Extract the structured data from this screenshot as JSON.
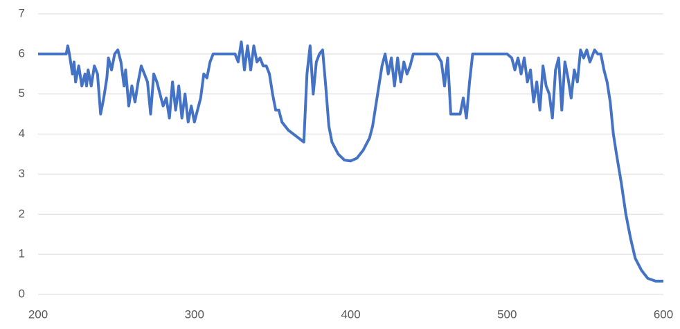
{
  "chart_data": {
    "type": "line",
    "x": [
      200,
      218,
      219,
      220,
      222,
      223,
      224,
      226,
      228,
      230,
      231,
      232,
      234,
      236,
      238,
      240,
      242,
      244,
      245,
      247,
      249,
      251,
      253,
      255,
      256,
      258,
      260,
      262,
      264,
      266,
      268,
      270,
      272,
      274,
      276,
      278,
      280,
      282,
      284,
      286,
      288,
      290,
      292,
      294,
      296,
      298,
      300,
      302,
      304,
      306,
      308,
      310,
      312,
      314,
      320,
      326,
      328,
      330,
      332,
      334,
      336,
      338,
      340,
      342,
      344,
      346,
      348,
      350,
      352,
      354,
      356,
      360,
      365,
      370,
      372,
      374,
      376,
      378,
      380,
      382,
      384,
      386,
      388,
      392,
      396,
      400,
      404,
      408,
      412,
      414,
      416,
      418,
      420,
      422,
      424,
      426,
      428,
      430,
      432,
      434,
      436,
      438,
      440,
      445,
      455,
      458,
      460,
      462,
      464,
      466,
      470,
      472,
      474,
      476,
      478,
      480,
      500,
      503,
      505,
      507,
      509,
      511,
      513,
      515,
      517,
      519,
      521,
      523,
      525,
      527,
      529,
      531,
      533,
      535,
      537,
      539,
      541,
      543,
      545,
      547,
      549,
      551,
      553,
      556,
      558,
      560,
      562,
      564,
      566,
      568,
      570,
      573,
      576,
      579,
      582,
      586,
      590,
      595,
      600
    ],
    "series": [
      {
        "color": "#4472c4",
        "values": [
          6,
          6,
          6.2,
          6,
          5.5,
          5.8,
          5.3,
          5.7,
          5.2,
          5.5,
          5.2,
          5.6,
          5.2,
          5.7,
          5.5,
          4.5,
          4.9,
          5.4,
          5.9,
          5.6,
          6.0,
          6.1,
          5.8,
          5.2,
          5.6,
          4.7,
          5.2,
          4.8,
          5.3,
          5.7,
          5.5,
          5.3,
          4.5,
          5.5,
          5.3,
          5.0,
          4.7,
          4.9,
          4.4,
          5.3,
          4.6,
          5.2,
          4.4,
          5.0,
          4.3,
          4.7,
          4.3,
          4.6,
          4.9,
          5.5,
          5.4,
          5.8,
          6.0,
          6.0,
          6.0,
          6.0,
          5.8,
          6.3,
          5.6,
          6.2,
          5.6,
          6.2,
          5.8,
          5.9,
          5.7,
          5.7,
          5.5,
          5.0,
          4.6,
          4.6,
          4.3,
          4.1,
          3.95,
          3.8,
          5.5,
          6.2,
          5.0,
          5.8,
          6.0,
          6.1,
          5.2,
          4.2,
          3.8,
          3.5,
          3.35,
          3.33,
          3.4,
          3.6,
          3.9,
          4.2,
          4.7,
          5.2,
          5.7,
          6.0,
          5.5,
          5.9,
          5.2,
          5.9,
          5.3,
          5.8,
          5.5,
          5.7,
          6.0,
          6.0,
          6.0,
          5.8,
          5.2,
          5.9,
          4.5,
          4.5,
          4.5,
          4.9,
          4.4,
          5.3,
          6.0,
          6.0,
          6.0,
          5.9,
          5.6,
          5.9,
          5.5,
          5.9,
          5.3,
          5.6,
          4.8,
          5.3,
          4.6,
          5.7,
          5.2,
          5.0,
          4.4,
          5.6,
          5.9,
          4.6,
          5.8,
          5.4,
          4.9,
          5.6,
          5.3,
          6.1,
          5.9,
          6.1,
          5.8,
          6.1,
          6.0,
          6.0,
          5.6,
          5.3,
          4.8,
          4.0,
          3.5,
          2.8,
          2.0,
          1.4,
          0.9,
          0.6,
          0.4,
          0.33,
          0.33
        ]
      }
    ],
    "xlim": [
      200,
      600
    ],
    "xticks": [
      200,
      300,
      400,
      500,
      600
    ],
    "ylim": [
      0,
      7
    ],
    "yticks": [
      0,
      1,
      2,
      3,
      4,
      5,
      6,
      7
    ],
    "grid": true
  }
}
